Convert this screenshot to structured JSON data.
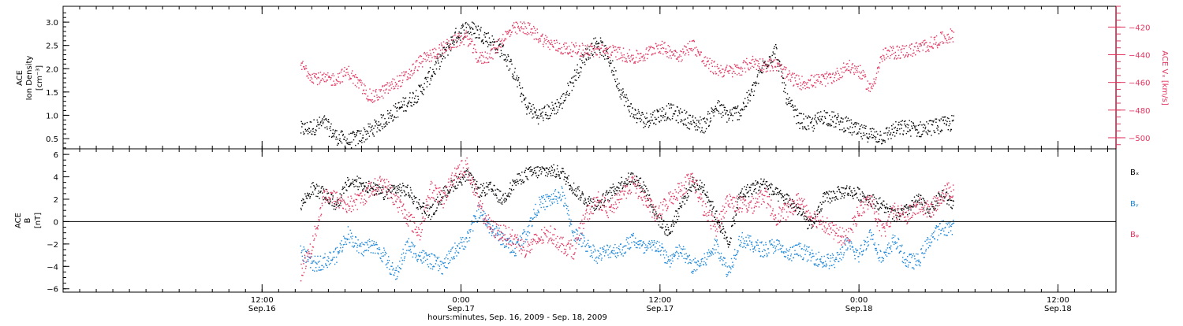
{
  "chart_data": [
    {
      "type": "scatter",
      "panel": "top",
      "ylabel_left_lines": [
        "ACE",
        "Ion Density",
        "[cm⁻³]"
      ],
      "ylabel_right": "ACE  Vₓ [km/s]",
      "ylim_left": [
        0.28,
        3.34
      ],
      "yticks_left": [
        "0.5",
        "1.0",
        "1.5",
        "2.0",
        "2.5",
        "3.0"
      ],
      "ylim_right": [
        -508,
        -405
      ],
      "yticks_right": [
        "−500",
        "−480",
        "−460",
        "−440",
        "−420"
      ],
      "series": [
        {
          "axis": "left",
          "color": "#000000",
          "x": [
            0,
            1,
            2,
            3,
            4,
            5,
            6,
            7,
            8,
            9,
            10,
            11,
            12,
            13,
            14,
            15,
            16,
            17,
            18,
            19,
            20,
            21,
            22,
            23,
            24,
            25,
            26,
            27,
            28,
            29,
            30,
            31,
            32,
            33,
            34,
            35,
            36,
            37,
            38,
            39,
            40,
            41,
            42,
            43,
            44,
            45,
            46,
            47,
            48,
            49,
            50,
            51,
            52,
            53,
            54,
            55
          ],
          "y": [
            0.7,
            0.75,
            0.85,
            0.55,
            0.45,
            0.55,
            0.7,
            0.9,
            1.1,
            1.3,
            1.5,
            1.9,
            2.3,
            2.7,
            2.9,
            2.8,
            2.6,
            2.4,
            1.9,
            1.2,
            1.0,
            1.1,
            1.3,
            1.8,
            2.3,
            2.6,
            2.2,
            1.5,
            1.05,
            0.9,
            1.0,
            1.1,
            1.0,
            0.85,
            0.8,
            1.2,
            1.0,
            1.1,
            1.5,
            2.1,
            2.4,
            1.3,
            0.9,
            0.8,
            1.0,
            0.9,
            0.8,
            0.65,
            0.6,
            0.55,
            0.7,
            0.75,
            0.7,
            0.75,
            0.8,
            0.85
          ]
        },
        {
          "axis": "right",
          "color": "#e2355f",
          "x": [
            0,
            1,
            2,
            3,
            4,
            5,
            6,
            7,
            8,
            9,
            10,
            11,
            12,
            13,
            14,
            15,
            16,
            17,
            18,
            19,
            20,
            21,
            22,
            23,
            24,
            25,
            26,
            27,
            28,
            29,
            30,
            31,
            32,
            33,
            34,
            35,
            36,
            37,
            38,
            39,
            40,
            41,
            42,
            43,
            44,
            45,
            46,
            47,
            48,
            49,
            50,
            51,
            52,
            53,
            54,
            55
          ],
          "y": [
            -447,
            -455,
            -458,
            -457,
            -452,
            -462,
            -471,
            -466,
            -460,
            -455,
            -445,
            -440,
            -435,
            -430,
            -427,
            -443,
            -440,
            -428,
            -421,
            -420,
            -426,
            -432,
            -435,
            -436,
            -436,
            -437,
            -437,
            -439,
            -442,
            -440,
            -433,
            -437,
            -440,
            -432,
            -445,
            -450,
            -452,
            -450,
            -445,
            -447,
            -447,
            -455,
            -460,
            -459,
            -458,
            -455,
            -448,
            -451,
            -465,
            -440,
            -438,
            -437,
            -435,
            -432,
            -428,
            -425
          ]
        }
      ]
    },
    {
      "type": "scatter",
      "panel": "bottom",
      "ylabel_lines": [
        "ACE",
        "B",
        "[nT]"
      ],
      "ylim": [
        -6.3,
        6.5
      ],
      "yticks": [
        "−6",
        "−4",
        "−2",
        "0",
        "2",
        "4",
        "6"
      ],
      "zero_line": true,
      "legend": {
        "placement": "right",
        "labels": [
          "Bₓ",
          "Bᵧ",
          "Bᵩ"
        ]
      },
      "series": [
        {
          "name": "Bₓ",
          "color": "#000000",
          "x": [
            0,
            1,
            2,
            3,
            4,
            5,
            6,
            7,
            8,
            9,
            10,
            11,
            12,
            13,
            14,
            15,
            16,
            17,
            18,
            19,
            20,
            21,
            22,
            23,
            24,
            25,
            26,
            27,
            28,
            29,
            30,
            31,
            32,
            33,
            34,
            35,
            36,
            37,
            38,
            39,
            40,
            41,
            42,
            43,
            44,
            45,
            46,
            47,
            48,
            49,
            50,
            51,
            52,
            53,
            54,
            55
          ],
          "y": [
            1.5,
            3.0,
            2.5,
            1.5,
            3.5,
            3.5,
            3.0,
            2.5,
            3.0,
            2.8,
            1.5,
            0.8,
            2.5,
            3.5,
            4.2,
            2.8,
            3.0,
            2.0,
            3.5,
            4.3,
            4.5,
            4.6,
            4.4,
            3.0,
            2.0,
            1.5,
            2.5,
            3.5,
            4.0,
            3.0,
            0.5,
            -1.0,
            1.5,
            3.5,
            3.0,
            0.5,
            -2.0,
            2.5,
            3.0,
            3.5,
            2.5,
            2.0,
            1.0,
            -0.5,
            2.0,
            2.5,
            2.8,
            2.5,
            2.0,
            1.5,
            0.5,
            1.0,
            2.0,
            1.0,
            2.5,
            1.5
          ]
        },
        {
          "name": "Bᵧ",
          "color": "#1a86d9",
          "x": [
            0,
            1,
            2,
            3,
            4,
            5,
            6,
            7,
            8,
            9,
            10,
            11,
            12,
            13,
            14,
            15,
            16,
            17,
            18,
            19,
            20,
            21,
            22,
            23,
            24,
            25,
            26,
            27,
            28,
            29,
            30,
            31,
            32,
            33,
            34,
            35,
            36,
            37,
            38,
            39,
            40,
            41,
            42,
            43,
            44,
            45,
            46,
            47,
            48,
            49,
            50,
            51,
            52,
            53,
            54,
            55
          ],
          "y": [
            -2.5,
            -3.8,
            -3.5,
            -3.0,
            -1.0,
            -2.5,
            -2.0,
            -3.0,
            -4.8,
            -2.0,
            -3.0,
            -3.5,
            -4.0,
            -2.5,
            -1.5,
            1.0,
            -0.5,
            -1.5,
            -2.5,
            -1.0,
            1.5,
            2.0,
            2.5,
            -1.0,
            -2.0,
            -3.0,
            -2.5,
            -2.5,
            -1.5,
            -2.5,
            -2.0,
            -3.5,
            -2.5,
            -4.0,
            -3.5,
            -2.0,
            -4.5,
            -1.5,
            -2.0,
            -2.5,
            -2.0,
            -3.0,
            -2.5,
            -3.0,
            -3.5,
            -3.5,
            -2.0,
            -3.0,
            -1.0,
            -3.5,
            -1.5,
            -3.5,
            -3.5,
            -1.5,
            -0.5,
            -0.5
          ]
        },
        {
          "name": "Bᵩ",
          "color": "#e2355f",
          "x": [
            0,
            1,
            2,
            3,
            4,
            5,
            6,
            7,
            8,
            9,
            10,
            11,
            12,
            13,
            14,
            15,
            16,
            17,
            18,
            19,
            20,
            21,
            22,
            23,
            24,
            25,
            26,
            27,
            28,
            29,
            30,
            31,
            32,
            33,
            34,
            35,
            36,
            37,
            38,
            39,
            40,
            41,
            42,
            43,
            44,
            45,
            46,
            47,
            48,
            49,
            50,
            51,
            52,
            53,
            54,
            55
          ],
          "y": [
            -4.5,
            -2.0,
            2.5,
            2.0,
            1.5,
            2.0,
            3.0,
            3.5,
            2.0,
            0.5,
            -1.0,
            3.0,
            2.0,
            4.5,
            5.0,
            1.5,
            -0.5,
            -1.0,
            -1.5,
            -2.5,
            -1.5,
            -1.0,
            -2.0,
            -2.5,
            0.5,
            2.0,
            1.0,
            2.5,
            3.5,
            2.0,
            0.5,
            2.0,
            3.0,
            4.0,
            1.0,
            -0.5,
            2.0,
            1.5,
            1.5,
            2.5,
            0.5,
            1.0,
            2.0,
            0.5,
            0.0,
            -1.0,
            -1.5,
            1.0,
            2.0,
            -1.0,
            1.0,
            0.5,
            1.5,
            1.0,
            2.5,
            3.0
          ]
        }
      ]
    }
  ],
  "time_axis": {
    "xlabel": "hours:minutes, Sep. 16, 2009 - Sep. 18, 2009",
    "ticks": [
      {
        "t": 12,
        "hm": "12:00",
        "date": "Sep.16"
      },
      {
        "t": 24,
        "hm": "0:00",
        "date": "Sep.17"
      },
      {
        "t": 36,
        "hm": "12:00",
        "date": "Sep.17"
      },
      {
        "t": 48,
        "hm": "0:00",
        "date": "Sep.18"
      },
      {
        "t": 60,
        "hm": "12:00",
        "date": "Sep.18"
      }
    ]
  }
}
